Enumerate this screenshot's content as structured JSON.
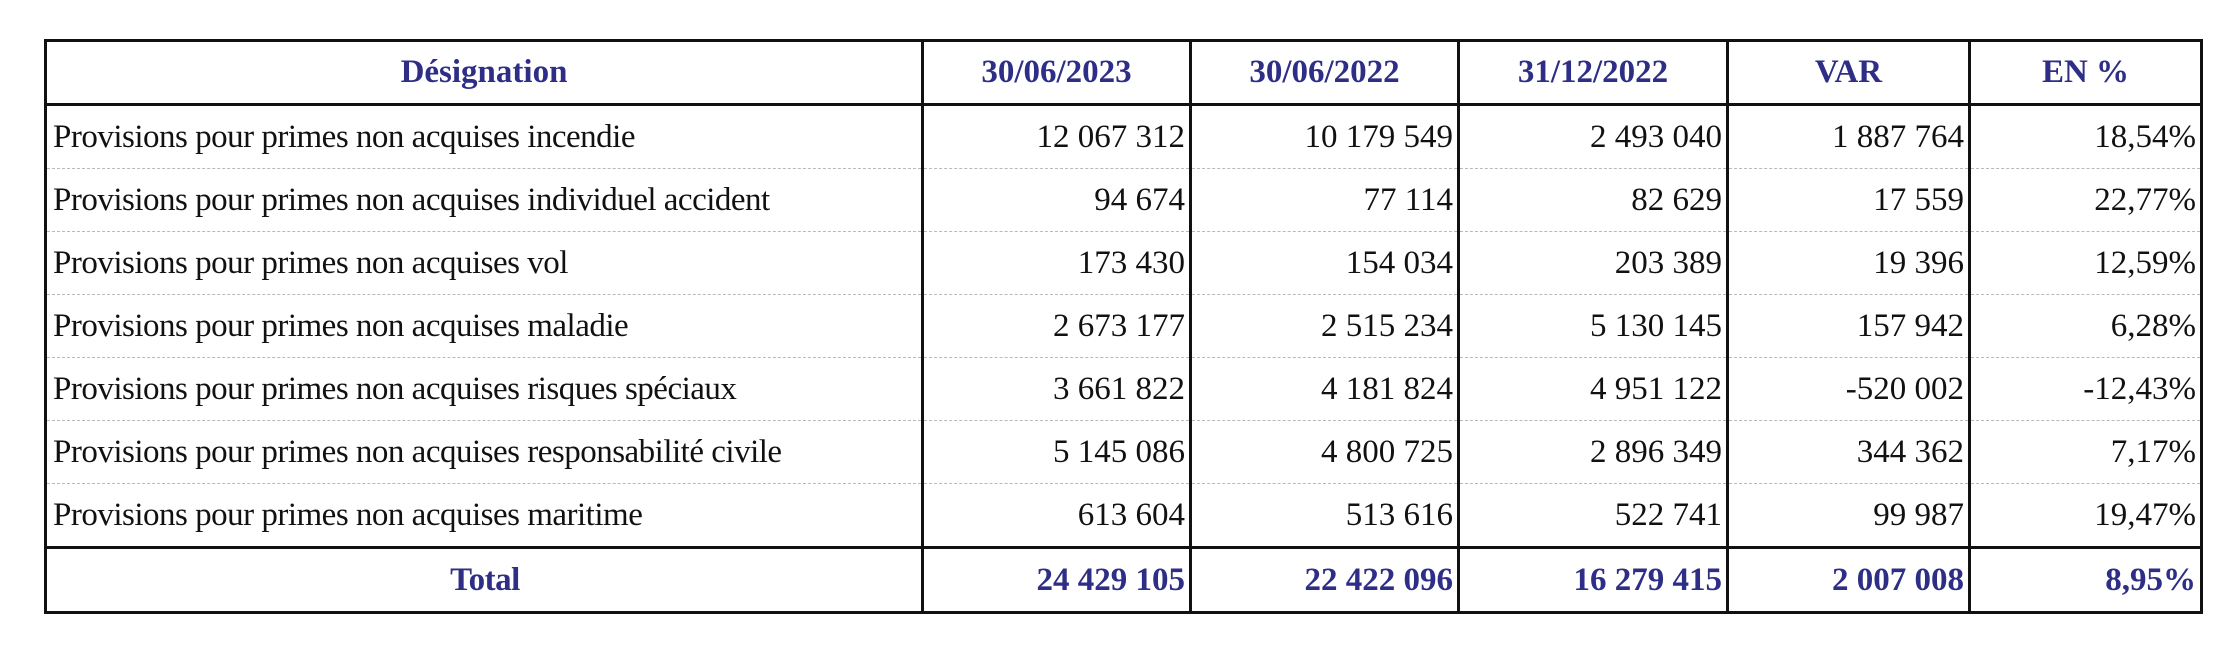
{
  "headers": [
    "Désignation",
    "30/06/2023",
    "30/06/2022",
    "31/12/2022",
    "VAR",
    "EN %"
  ],
  "rows": [
    {
      "label": "Provisions pour primes non acquises incendie",
      "v2023": "12 067 312",
      "v2022": "10 179 549",
      "dec2022": "2 493 040",
      "var": "1 887 764",
      "pct": "18,54%"
    },
    {
      "label": "Provisions pour primes non acquises individuel accident",
      "v2023": "94 674",
      "v2022": "77 114",
      "dec2022": "82 629",
      "var": "17 559",
      "pct": "22,77%"
    },
    {
      "label": "Provisions pour primes non acquises vol",
      "v2023": "173 430",
      "v2022": "154 034",
      "dec2022": "203 389",
      "var": "19 396",
      "pct": "12,59%"
    },
    {
      "label": "Provisions pour primes non acquises maladie",
      "v2023": "2 673 177",
      "v2022": "2 515 234",
      "dec2022": "5 130 145",
      "var": "157 942",
      "pct": "6,28%"
    },
    {
      "label": "Provisions pour primes non acquises risques spéciaux",
      "v2023": "3 661 822",
      "v2022": "4 181 824",
      "dec2022": "4 951 122",
      "var": "-520 002",
      "pct": "-12,43%"
    },
    {
      "label": "Provisions pour primes non acquises responsabilité civile",
      "v2023": "5 145 086",
      "v2022": "4 800 725",
      "dec2022": "2 896 349",
      "var": "344 362",
      "pct": "7,17%"
    },
    {
      "label": "Provisions pour primes non acquises maritime",
      "v2023": "613 604",
      "v2022": "513 616",
      "dec2022": "522 741",
      "var": "99 987",
      "pct": "19,47%"
    }
  ],
  "total": {
    "label": "Total",
    "v2023": "24 429 105",
    "v2022": "22 422 096",
    "dec2022": "16 279 415",
    "var": "2 007 008",
    "pct": "8,95%"
  },
  "colors": {
    "header_text": "#2e2e86",
    "body_text": "#111111",
    "border": "#111111"
  }
}
